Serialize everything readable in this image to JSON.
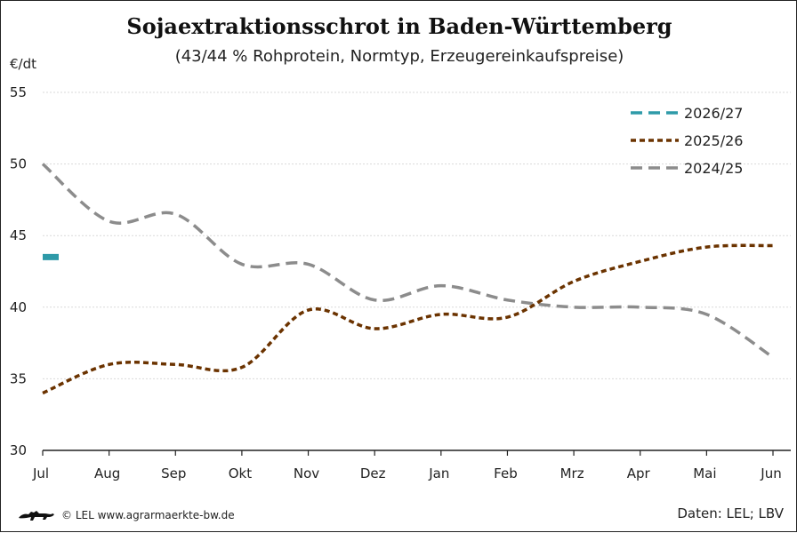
{
  "chart_data": {
    "type": "line",
    "title": "Sojaextraktionsschrot in Baden-Württemberg",
    "subtitle": "(43/44 % Rohprotein, Normtyp, Erzeugereinkaufspreise)",
    "ylabel": "€/dt",
    "ylim": [
      30,
      55
    ],
    "yticks": [
      30,
      35,
      40,
      45,
      50,
      55
    ],
    "categories": [
      "Jul",
      "Aug",
      "Sep",
      "Okt",
      "Nov",
      "Dez",
      "Jan",
      "Feb",
      "Mrz",
      "Apr",
      "Mai",
      "Jun"
    ],
    "grid": true,
    "legend_position": "top-right",
    "series": [
      {
        "name": "2026/27",
        "color": "#2e9aa8",
        "dash": "dash",
        "values": [
          43.5,
          null,
          null,
          null,
          null,
          null,
          null,
          null,
          null,
          null,
          null,
          null
        ]
      },
      {
        "name": "2025/26",
        "color": "#6b3300",
        "dash": "short-dash",
        "values": [
          34.0,
          36.0,
          36.0,
          35.8,
          39.8,
          38.5,
          39.5,
          39.3,
          41.8,
          43.2,
          44.2,
          44.3
        ]
      },
      {
        "name": "2024/25",
        "color": "#8c8c8c",
        "dash": "dash",
        "values": [
          50.0,
          46.0,
          46.5,
          43.0,
          43.0,
          40.5,
          41.5,
          40.5,
          40.0,
          40.0,
          39.5,
          36.5
        ]
      }
    ]
  },
  "footer": {
    "copyright": "© LEL www.agrarmaerkte-bw.de",
    "source": "Daten: LEL; LBV",
    "logo_icon": "baden-wuerttemberg-lion-icon"
  }
}
